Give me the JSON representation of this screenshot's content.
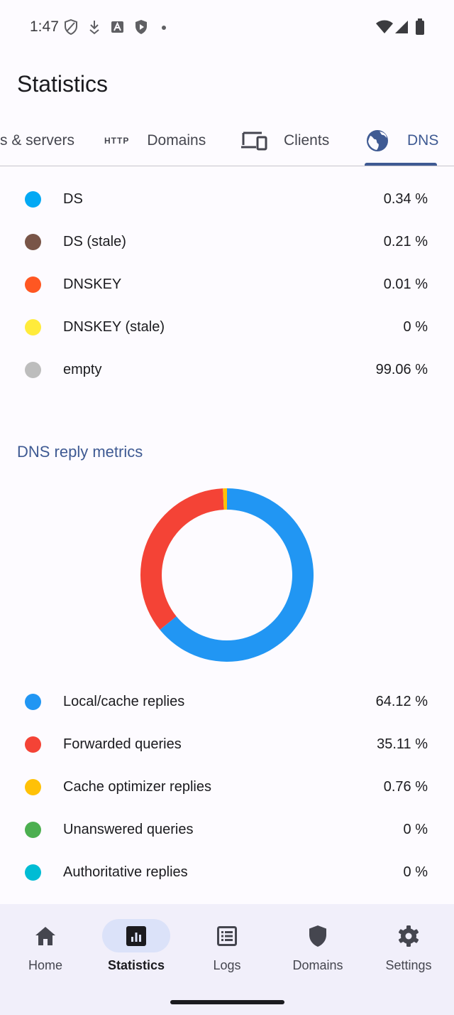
{
  "status_bar": {
    "time": "1:47"
  },
  "app_bar": {
    "title": "Statistics"
  },
  "tabs": [
    {
      "label": "s & servers",
      "icon": "server-icon"
    },
    {
      "label": "Domains",
      "icon": "http-icon",
      "icon_text": "HTTP"
    },
    {
      "label": "Clients",
      "icon": "devices-icon"
    },
    {
      "label": "DNS",
      "icon": "globe-icon",
      "active": true
    }
  ],
  "dnssec_legend": [
    {
      "label": "DS",
      "value": "0.34 %",
      "color": "#03a9f4"
    },
    {
      "label": "DS (stale)",
      "value": "0.21 %",
      "color": "#795548"
    },
    {
      "label": "DNSKEY",
      "value": "0.01 %",
      "color": "#ff5722"
    },
    {
      "label": "DNSKEY (stale)",
      "value": "0 %",
      "color": "#ffeb3b"
    },
    {
      "label": "empty",
      "value": "99.06 %",
      "color": "#bdbdbd"
    }
  ],
  "reply_metrics": {
    "title": "DNS reply metrics",
    "legend": [
      {
        "label": "Local/cache replies",
        "value": "64.12 %",
        "color": "#2196f3"
      },
      {
        "label": "Forwarded queries",
        "value": "35.11 %",
        "color": "#f44336"
      },
      {
        "label": "Cache optimizer replies",
        "value": "0.76 %",
        "color": "#ffc107"
      },
      {
        "label": "Unanswered queries",
        "value": "0 %",
        "color": "#4caf50"
      },
      {
        "label": "Authoritative replies",
        "value": "0 %",
        "color": "#00bcd4"
      }
    ]
  },
  "chart_data": {
    "type": "pie",
    "categories": [
      "Local/cache replies",
      "Forwarded queries",
      "Cache optimizer replies",
      "Unanswered queries",
      "Authoritative replies"
    ],
    "values": [
      64.12,
      35.11,
      0.76,
      0,
      0
    ],
    "colors": [
      "#2196f3",
      "#f44336",
      "#ffc107",
      "#4caf50",
      "#00bcd4"
    ],
    "donut": true
  },
  "bottom_nav": [
    {
      "label": "Home",
      "icon": "home-icon"
    },
    {
      "label": "Statistics",
      "icon": "statistics-icon",
      "active": true
    },
    {
      "label": "Logs",
      "icon": "logs-icon"
    },
    {
      "label": "Domains",
      "icon": "shield-icon"
    },
    {
      "label": "Settings",
      "icon": "gear-icon"
    }
  ]
}
